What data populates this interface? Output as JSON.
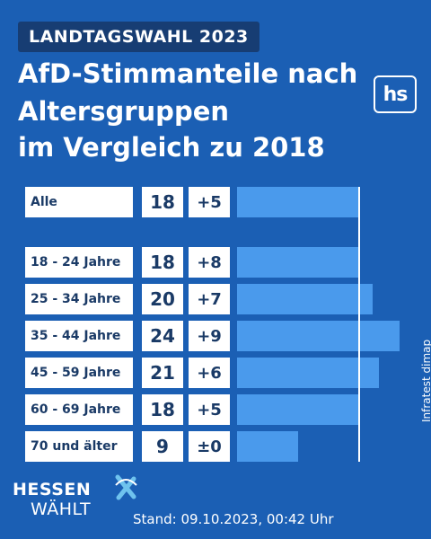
{
  "header": {
    "kicker": "LANDTAGSWAHL 2023",
    "title_lines": [
      "AfD-Stimmanteile nach",
      "Altersgruppen",
      "im Vergleich zu 2018"
    ],
    "logo": "hs"
  },
  "chart_data": {
    "type": "bar",
    "orientation": "horizontal",
    "categories": [
      "Alle",
      "18 - 24 Jahre",
      "25 - 34 Jahre",
      "35 - 44 Jahre",
      "45 - 59 Jahre",
      "60 - 69 Jahre",
      "70 und älter"
    ],
    "values": [
      18,
      18,
      20,
      24,
      21,
      18,
      9
    ],
    "changes": [
      "+5",
      "+8",
      "+7",
      "+9",
      "+6",
      "+5",
      "±0"
    ],
    "reference_value": 18,
    "bar_color": "#4a9aec",
    "background_color": "#1b5fb4"
  },
  "source": "Infratest dimap",
  "footer": {
    "brand_top": "HESSEN",
    "brand_bottom": "WÄHLT",
    "stand": "Stand: 09.10.2023, 00:42 Uhr"
  }
}
